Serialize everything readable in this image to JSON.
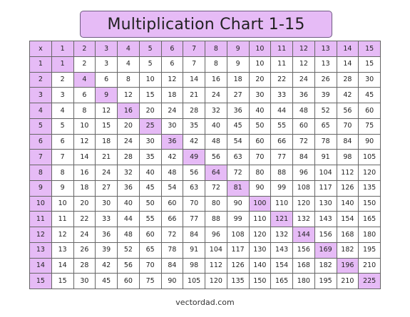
{
  "title": "Multiplication Chart 1-15",
  "corner_label": "x",
  "size": 15,
  "footer": "vectordad.com",
  "colors": {
    "accent": "#e6bbf6",
    "border": "#666666",
    "title_border": "#6f5a82"
  }
}
